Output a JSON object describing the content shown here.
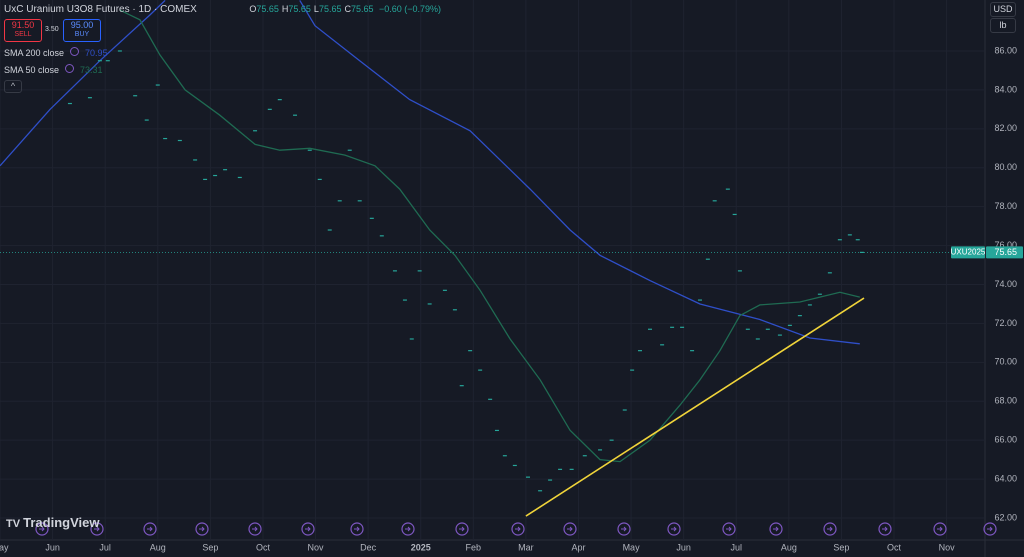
{
  "header": {
    "symbol": "UxC Uranium U3O8 Futures · 1D · COMEX",
    "ohlc": [
      {
        "k": "O",
        "v": "75.65"
      },
      {
        "k": "H",
        "v": "75.65"
      },
      {
        "k": "L",
        "v": "75.65"
      },
      {
        "k": "C",
        "v": "75.65"
      }
    ],
    "change": "−0.60 (−0.79%)",
    "sell_price": "91.50",
    "sell": "SELL",
    "spread": "3.50",
    "buy_price": "95.00",
    "buy": "BUY",
    "indicators": [
      {
        "name": "SMA 200 close",
        "value": "70.95",
        "color": "#2f4fc9"
      },
      {
        "name": "SMA 50 close",
        "value": "73.31",
        "color": "#1f6b52"
      }
    ]
  },
  "currency": "USD",
  "unit": "lb",
  "logo": "TradingView",
  "chart_data": {
    "type": "line",
    "xlim": [
      0,
      18.73
    ],
    "xticks": [
      {
        "value": 0,
        "label": "May"
      },
      {
        "value": 1,
        "label": "Jun"
      },
      {
        "value": 2,
        "label": "Jul"
      },
      {
        "value": 3,
        "label": "Aug"
      },
      {
        "value": 4,
        "label": "Sep"
      },
      {
        "value": 5,
        "label": "Oct"
      },
      {
        "value": 6,
        "label": "Nov"
      },
      {
        "value": 7,
        "label": "Dec"
      },
      {
        "value": 8,
        "label": "2025"
      },
      {
        "value": 9,
        "label": "Feb"
      },
      {
        "value": 10,
        "label": "Mar"
      },
      {
        "value": 11,
        "label": "Apr"
      },
      {
        "value": 12,
        "label": "May"
      },
      {
        "value": 13,
        "label": "Jun"
      },
      {
        "value": 14,
        "label": "Jul"
      },
      {
        "value": 15,
        "label": "Aug"
      },
      {
        "value": 16,
        "label": "Sep"
      },
      {
        "value": 17,
        "label": "Oct"
      },
      {
        "value": 18,
        "label": "Nov"
      }
    ],
    "ylim": [
      60.87,
      88.62
    ],
    "yticks": [
      {
        "value": 62,
        "label": "62.00"
      },
      {
        "value": 64,
        "label": "64.00"
      },
      {
        "value": 66,
        "label": "66.00"
      },
      {
        "value": 68,
        "label": "68.00"
      },
      {
        "value": 70,
        "label": "70.00"
      },
      {
        "value": 72,
        "label": "72.00"
      },
      {
        "value": 74,
        "label": "74.00"
      },
      {
        "value": 76,
        "label": "76.00"
      },
      {
        "value": 78,
        "label": "78.00"
      },
      {
        "value": 80,
        "label": "80.00"
      },
      {
        "value": 82,
        "label": "82.00"
      },
      {
        "value": 84,
        "label": "84.00"
      },
      {
        "value": 86,
        "label": "86.00"
      }
    ],
    "grid": true,
    "price": {
      "color": "#26a69a",
      "x": [
        1.33,
        1.71,
        1.9,
        2.05,
        2.28,
        2.57,
        2.79,
        3.0,
        3.14,
        3.42,
        3.71,
        3.9,
        4.09,
        4.28,
        4.56,
        4.85,
        5.13,
        5.32,
        5.61,
        5.89,
        6.08,
        6.27,
        6.46,
        6.65,
        6.84,
        7.07,
        7.26,
        7.51,
        7.7,
        7.83,
        7.98,
        8.17,
        8.46,
        8.65,
        8.78,
        8.94,
        9.13,
        9.32,
        9.45,
        9.6,
        9.79,
        10.04,
        10.27,
        10.46,
        10.65,
        10.87,
        11.12,
        11.41,
        11.63,
        11.88,
        12.02,
        12.17,
        12.36,
        12.59,
        12.78,
        12.97,
        13.16,
        13.31,
        13.46,
        13.59,
        13.84,
        13.97,
        14.07,
        14.22,
        14.41,
        14.6,
        14.83,
        15.02,
        15.21,
        15.4,
        15.59,
        15.78,
        15.97,
        16.16,
        16.31,
        16.39
      ],
      "values": [
        83.3,
        83.6,
        85.5,
        85.5,
        86.0,
        83.7,
        82.45,
        84.25,
        81.5,
        81.4,
        80.4,
        79.4,
        79.6,
        79.9,
        79.5,
        81.9,
        83.0,
        83.5,
        82.7,
        80.9,
        79.4,
        76.8,
        78.3,
        80.9,
        78.3,
        77.4,
        76.5,
        74.7,
        73.2,
        71.2,
        74.7,
        73.0,
        73.7,
        72.7,
        68.8,
        70.6,
        69.6,
        68.1,
        66.5,
        65.2,
        64.7,
        64.1,
        63.4,
        63.95,
        64.5,
        64.5,
        65.2,
        65.5,
        66.0,
        67.55,
        69.6,
        70.6,
        71.7,
        70.9,
        71.8,
        71.8,
        70.6,
        73.2,
        75.3,
        78.3,
        78.9,
        77.6,
        74.7,
        71.7,
        71.2,
        71.7,
        71.4,
        71.9,
        72.4,
        72.95,
        73.5,
        74.6,
        76.3,
        76.55,
        76.3,
        75.65
      ]
    },
    "series": [
      {
        "name": "SMA 200 close",
        "color": "#2f4fc9",
        "x": [
          0,
          0.95,
          1.9,
          2.85,
          3.14,
          4.5,
          5.7,
          5.99,
          6.84,
          7.79,
          8.94,
          10.08,
          10.84,
          11.41,
          12.36,
          13.31,
          14.45,
          15.4,
          16.35
        ],
        "values": [
          80.1,
          83.0,
          85.5,
          87.85,
          88.6,
          null,
          88.6,
          87.3,
          85.5,
          83.5,
          81.9,
          78.9,
          76.8,
          75.5,
          74.2,
          73.0,
          72.2,
          71.25,
          70.95
        ]
      },
      {
        "name": "SMA 50 close",
        "color": "#1f6b52",
        "x": [
          2.28,
          2.66,
          3.04,
          3.52,
          4.18,
          4.85,
          5.32,
          5.89,
          6.56,
          7.13,
          7.6,
          8.17,
          8.65,
          9.13,
          9.7,
          10.27,
          10.84,
          11.41,
          11.79,
          12.36,
          12.93,
          13.31,
          13.69,
          14.07,
          14.45,
          15.21,
          15.97,
          16.35
        ],
        "values": [
          88.1,
          87.6,
          85.8,
          84.0,
          82.7,
          81.2,
          80.9,
          81.0,
          80.65,
          80.1,
          78.9,
          76.8,
          75.5,
          73.7,
          71.2,
          69.1,
          66.5,
          65.0,
          64.9,
          66.0,
          67.8,
          69.1,
          70.6,
          72.4,
          72.95,
          73.1,
          73.6,
          73.35
        ]
      }
    ],
    "trendline": {
      "color": "#f0d43a",
      "x": [
        10.0,
        16.43
      ],
      "values": [
        62.1,
        73.3
      ]
    },
    "last_price": 75.65,
    "last_price_label": "UXU2025"
  }
}
